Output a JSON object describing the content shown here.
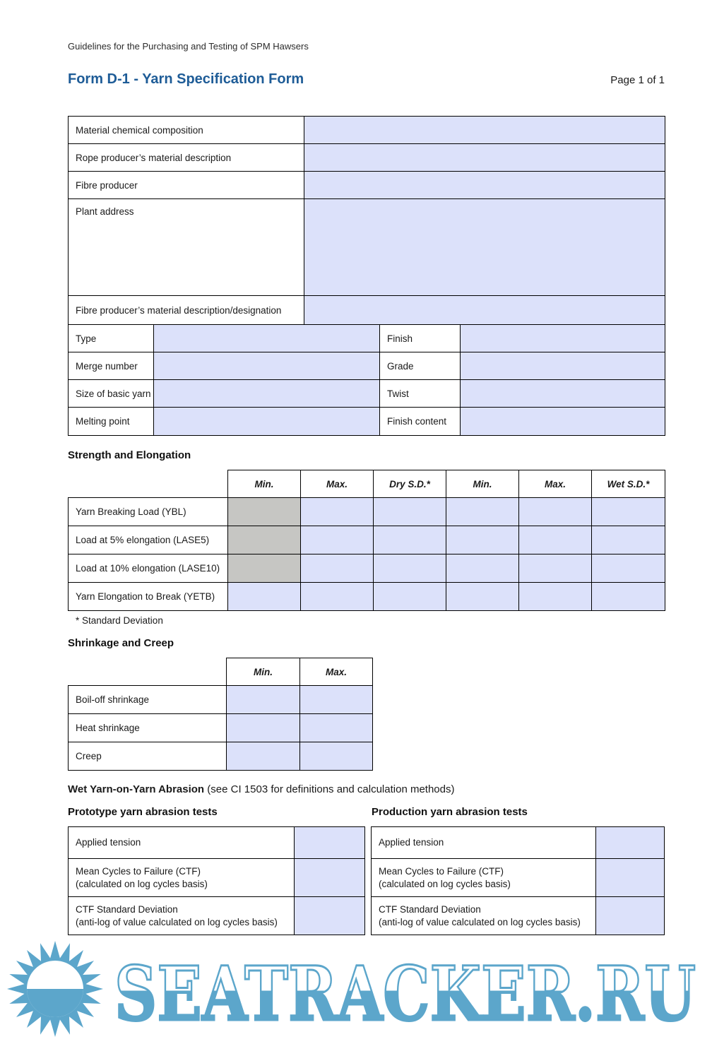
{
  "page": {
    "header": "Guidelines for the Purchasing and Testing of SPM Hawsers",
    "title": "Form D-1 - Yarn Specification Form",
    "page_label": "Page 1 of 1"
  },
  "colors": {
    "title_blue": "#1e5c97",
    "field_blue": "#dce1fa",
    "disabled_gray": "#c6c6c3",
    "watermark_blue": "#5ca6cb",
    "border": "#000000"
  },
  "general_table": {
    "full_rows": [
      {
        "label": "Material chemical composition"
      },
      {
        "label": "Rope producer’s material description"
      },
      {
        "label": "Fibre producer"
      },
      {
        "label": "Plant address"
      },
      {
        "label": "Fibre producer’s material description/designation"
      }
    ],
    "pair_rows": [
      {
        "left": "Type",
        "right": "Finish"
      },
      {
        "left": "Merge number",
        "right": "Grade"
      },
      {
        "left": "Size of basic yarn",
        "right": "Twist"
      },
      {
        "left": "Melting point",
        "right": "Finish content"
      }
    ]
  },
  "strength": {
    "heading": "Strength and Elongation",
    "columns": [
      "Min.",
      "Max.",
      "Dry S.D.*",
      "Min.",
      "Max.",
      "Wet S.D.*"
    ],
    "rows": [
      {
        "label": "Yarn Breaking Load (YBL)"
      },
      {
        "label": "Load at 5% elongation (LASE5)"
      },
      {
        "label": "Load at 10% elongation (LASE10)"
      },
      {
        "label": "Yarn Elongation to Break (YETB)"
      }
    ],
    "footnote": "* Standard Deviation"
  },
  "shrinkage": {
    "heading": "Shrinkage and Creep",
    "columns": [
      "Min.",
      "Max."
    ],
    "rows": [
      {
        "label": "Boil-off shrinkage"
      },
      {
        "label": "Heat shrinkage"
      },
      {
        "label": "Creep"
      }
    ]
  },
  "abrasion": {
    "heading_bold": "Wet Yarn-on-Yarn Abrasion",
    "heading_note": " (see CI 1503 for definitions and calculation methods)",
    "prototype_heading": "Prototype yarn abrasion tests",
    "production_heading": "Production yarn abrasion tests",
    "rows": [
      {
        "line1": "Applied tension",
        "line2": ""
      },
      {
        "line1": "Mean Cycles to Failure (CTF)",
        "line2": "(calculated on log cycles basis)"
      },
      {
        "line1": "CTF Standard Deviation",
        "line2": "(anti-log of value calculated on log cycles basis)"
      }
    ]
  },
  "watermark": {
    "text": "SEATRACKER.RU",
    "logo": "sun-logo"
  }
}
